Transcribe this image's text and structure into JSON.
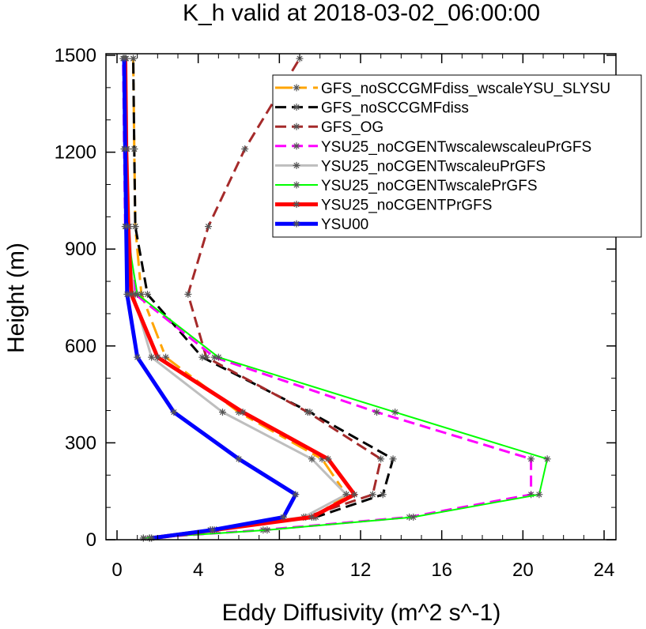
{
  "chart_data": {
    "type": "line",
    "title": "K_h valid at 2018-03-02_06:00:00",
    "xlabel": "Eddy Diffusivity (m^2 s^-1)",
    "ylabel": "Height (m)",
    "xlim": [
      0,
      24
    ],
    "ylim": [
      0,
      1500
    ],
    "xticks": [
      0,
      4,
      8,
      12,
      16,
      20,
      24
    ],
    "yticks": [
      0,
      300,
      600,
      900,
      1200,
      1500
    ],
    "xtick_labels": [
      "0",
      "4",
      "8",
      "12",
      "16",
      "20",
      "24"
    ],
    "ytick_labels": [
      "0",
      "300",
      "600",
      "900",
      "1200",
      "1500"
    ],
    "legend_position": "top-right",
    "heights": [
      5,
      30,
      70,
      140,
      250,
      395,
      565,
      760,
      970,
      1210,
      1490
    ],
    "series": [
      {
        "name": "GFS_noSCCGMFdiss_wscaleYSU_SLYSU",
        "color": "#ffa500",
        "dash": "long-dash",
        "width": 3,
        "values": [
          1.6,
          4.7,
          9.7,
          11.3,
          10.1,
          6.0,
          2.4,
          1.2,
          0.9,
          0.85,
          0.8
        ]
      },
      {
        "name": "GFS_noSCCGMFdiss",
        "color": "#000000",
        "dash": "dash",
        "width": 3,
        "values": [
          1.6,
          4.9,
          9.8,
          13.1,
          13.6,
          9.5,
          4.2,
          1.5,
          0.9,
          0.85,
          0.8
        ]
      },
      {
        "name": "GFS_OG",
        "color": "#a52a2a",
        "dash": "dash",
        "width": 3,
        "values": [
          1.6,
          4.6,
          9.3,
          12.6,
          13.0,
          9.4,
          4.4,
          3.5,
          4.5,
          6.3,
          9.0
        ]
      },
      {
        "name": "YSU25_noCGENTwscalewscaleuPrGFS",
        "color": "#ff00ff",
        "dash": "dash",
        "width": 3,
        "values": [
          1.3,
          7.2,
          14.4,
          20.4,
          20.4,
          12.8,
          4.8,
          0.9,
          0.4,
          0.35,
          0.3
        ]
      },
      {
        "name": "YSU25_noCGENTwscaleuPrGFS",
        "color": "#bebebe",
        "dash": "solid",
        "width": 3,
        "values": [
          1.6,
          4.6,
          9.2,
          11.3,
          9.6,
          5.2,
          1.7,
          0.8,
          0.6,
          0.5,
          0.45
        ]
      },
      {
        "name": "YSU25_noCGENTwscalePrGFS",
        "color": "#00ff00",
        "dash": "solid",
        "width": 2,
        "values": [
          1.3,
          7.4,
          14.6,
          20.8,
          21.2,
          13.7,
          5.0,
          1.0,
          0.45,
          0.4,
          0.35
        ]
      },
      {
        "name": "YSU25_noCGENTPrGFS",
        "color": "#ff0000",
        "dash": "solid",
        "width": 5,
        "values": [
          1.7,
          4.8,
          9.6,
          11.7,
          10.4,
          6.2,
          2.0,
          0.7,
          0.55,
          0.45,
          0.4
        ]
      },
      {
        "name": "YSU00",
        "color": "#0000ff",
        "dash": "solid",
        "width": 5,
        "values": [
          1.7,
          4.7,
          8.2,
          8.8,
          6.0,
          2.8,
          1.0,
          0.5,
          0.45,
          0.4,
          0.35
        ]
      }
    ]
  }
}
